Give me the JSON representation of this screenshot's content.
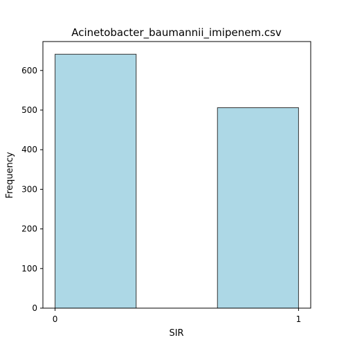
{
  "chart_data": {
    "type": "bar",
    "title": "Acinetobacter_baumannii_imipenem.csv",
    "xlabel": "SIR",
    "ylabel": "Frequency",
    "bins": [
      {
        "x0": 0.0,
        "x1": 0.333,
        "value": 641
      },
      {
        "x0": 0.667,
        "x1": 1.0,
        "value": 506
      }
    ],
    "xlim": [
      -0.05,
      1.05
    ],
    "ylim": [
      0,
      673
    ],
    "x_ticks": [
      {
        "value": 0,
        "label": "0"
      },
      {
        "value": 1,
        "label": "1"
      }
    ],
    "y_ticks": [
      {
        "value": 0,
        "label": "0"
      },
      {
        "value": 100,
        "label": "100"
      },
      {
        "value": 200,
        "label": "200"
      },
      {
        "value": 300,
        "label": "300"
      },
      {
        "value": 400,
        "label": "400"
      },
      {
        "value": 500,
        "label": "500"
      },
      {
        "value": 600,
        "label": "600"
      }
    ],
    "grid": false,
    "legend": "none",
    "colors": {
      "bar_fill": "#add8e6",
      "bar_edge": "#333333"
    }
  }
}
